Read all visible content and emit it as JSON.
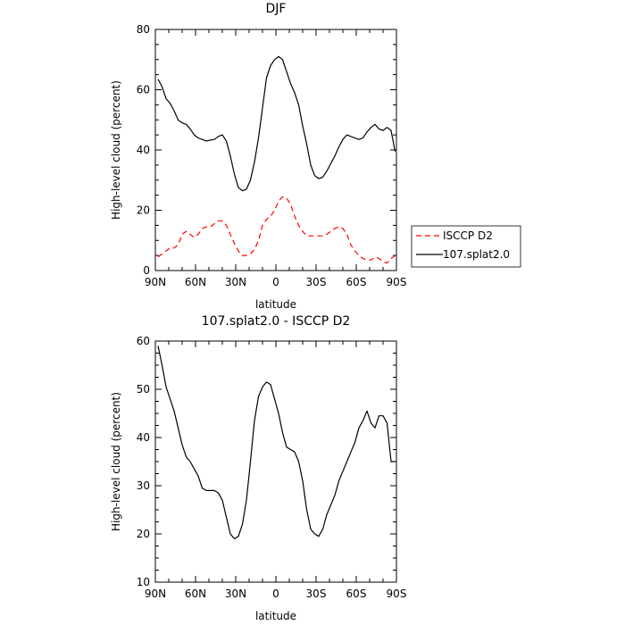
{
  "chart_data": [
    {
      "type": "line",
      "title": "DJF",
      "xlabel": "latitude",
      "ylabel": "High-level cloud (percent)",
      "xlim": [
        -90,
        90
      ],
      "ylim": [
        0,
        80
      ],
      "x_ticks": [
        -90,
        -60,
        -30,
        0,
        30,
        60,
        90
      ],
      "x_tick_labels": [
        "90N",
        "60N",
        "30N",
        "0",
        "30S",
        "60S",
        "90S"
      ],
      "y_ticks": [
        0,
        20,
        40,
        60,
        80
      ],
      "y_tick_labels": [
        "0",
        "20",
        "40",
        "60",
        "80"
      ],
      "grid": false,
      "legend_position": "right",
      "series": [
        {
          "name": "ISCCP D2",
          "color": "#ff0000",
          "dash": "dashed",
          "x": [
            -88,
            -85,
            -82,
            -79,
            -76,
            -73,
            -70,
            -67,
            -64,
            -61,
            -58,
            -55,
            -52,
            -49,
            -46,
            -43,
            -40,
            -37,
            -34,
            -31,
            -28,
            -25,
            -22,
            -19,
            -16,
            -13,
            -10,
            -7,
            -4,
            -1,
            2,
            5,
            8,
            11,
            14,
            17,
            20,
            23,
            26,
            29,
            32,
            35,
            38,
            41,
            44,
            47,
            50,
            53,
            56,
            59,
            62,
            65,
            68,
            71,
            74,
            77,
            80,
            83,
            86,
            89
          ],
          "y": [
            4.5,
            5.5,
            6.5,
            7.5,
            7.5,
            8.5,
            12,
            13,
            12,
            11,
            12,
            14,
            14.5,
            14.5,
            15.5,
            16.5,
            16.5,
            15,
            12,
            9,
            6.5,
            5,
            5,
            5.5,
            7,
            10,
            15,
            17,
            18,
            20,
            23,
            24.5,
            24,
            22,
            18,
            15,
            13,
            11.5,
            11.5,
            11.5,
            11.5,
            11.5,
            12,
            13,
            14,
            14.5,
            14,
            12,
            8.5,
            6.5,
            5,
            4,
            3.5,
            3.5,
            4.5,
            4,
            3,
            2.5,
            4,
            5
          ]
        },
        {
          "name": "107.splat2.0",
          "color": "#000000",
          "dash": "solid",
          "x": [
            -88,
            -85,
            -82,
            -79,
            -76,
            -73,
            -70,
            -67,
            -64,
            -61,
            -58,
            -55,
            -52,
            -49,
            -46,
            -43,
            -40,
            -37,
            -34,
            -31,
            -28,
            -25,
            -22,
            -19,
            -16,
            -13,
            -10,
            -7,
            -4,
            -1,
            2,
            5,
            8,
            11,
            14,
            17,
            20,
            23,
            26,
            29,
            32,
            35,
            38,
            41,
            44,
            47,
            50,
            53,
            56,
            59,
            62,
            65,
            68,
            71,
            74,
            77,
            80,
            83,
            86,
            89
          ],
          "y": [
            63.5,
            61,
            57,
            55.5,
            53,
            50,
            49,
            48.5,
            47,
            45,
            44,
            43.5,
            43,
            43.3,
            43.5,
            44.5,
            45,
            43,
            38,
            32,
            27.5,
            26.5,
            27,
            30,
            36,
            44,
            54,
            64,
            68,
            70,
            71,
            70,
            66,
            62,
            59,
            55,
            48,
            42,
            35,
            31.5,
            30.5,
            31,
            33,
            35.5,
            38,
            41,
            43.5,
            45,
            44.5,
            44,
            43.5,
            44,
            46,
            47.5,
            48.5,
            47,
            46.5,
            47.5,
            46.5,
            39.5
          ]
        }
      ]
    },
    {
      "type": "line",
      "title": "107.splat2.0 - ISCCP D2",
      "xlabel": "latitude",
      "ylabel": "High-level cloud (percent)",
      "xlim": [
        -90,
        90
      ],
      "ylim": [
        10,
        60
      ],
      "x_ticks": [
        -90,
        -60,
        -30,
        0,
        30,
        60,
        90
      ],
      "x_tick_labels": [
        "90N",
        "60N",
        "30N",
        "0",
        "30S",
        "60S",
        "90S"
      ],
      "y_ticks": [
        10,
        20,
        30,
        40,
        50,
        60
      ],
      "y_tick_labels": [
        "10",
        "20",
        "30",
        "40",
        "50",
        "60"
      ],
      "grid": false,
      "series": [
        {
          "color": "#000000",
          "dash": "solid",
          "x": [
            -88,
            -85,
            -82,
            -79,
            -76,
            -73,
            -70,
            -67,
            -64,
            -61,
            -58,
            -55,
            -52,
            -49,
            -46,
            -43,
            -40,
            -37,
            -34,
            -31,
            -28,
            -25,
            -22,
            -19,
            -16,
            -13,
            -10,
            -7,
            -4,
            -1,
            2,
            5,
            8,
            11,
            14,
            17,
            20,
            23,
            26,
            29,
            32,
            35,
            38,
            41,
            44,
            47,
            50,
            53,
            56,
            59,
            62,
            65,
            68,
            71,
            74,
            77,
            80,
            83,
            86,
            89
          ],
          "y": [
            59,
            55,
            50.5,
            48,
            45.5,
            42,
            38.5,
            36,
            35,
            33.5,
            32,
            29.5,
            29,
            29,
            29,
            28.5,
            27,
            23.5,
            20,
            19,
            19.5,
            22,
            27,
            35,
            43.5,
            48.5,
            50.5,
            51.5,
            51,
            48,
            45,
            41,
            38,
            37.5,
            37,
            35,
            31,
            25,
            21,
            20,
            19.5,
            21,
            24,
            26,
            28,
            31,
            33,
            35,
            37,
            39,
            42,
            43.5,
            45.5,
            43,
            42,
            44.5,
            44.5,
            43,
            35,
            35
          ]
        }
      ]
    }
  ]
}
